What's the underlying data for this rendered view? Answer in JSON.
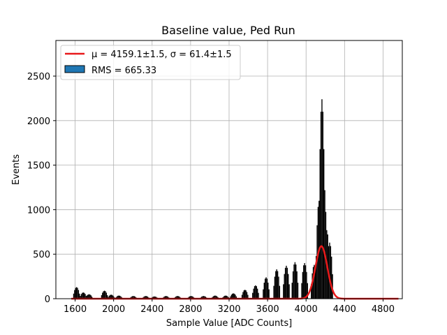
{
  "chart_data": {
    "type": "bar",
    "title": "Baseline value, Ped Run",
    "xlabel": "Sample Value [ADC Counts]",
    "ylabel": "Events",
    "xlim": [
      1400,
      5000
    ],
    "ylim": [
      0,
      2900
    ],
    "xticks": [
      1600,
      2000,
      2400,
      2800,
      3200,
      3600,
      4000,
      4400,
      4800
    ],
    "yticks": [
      0,
      500,
      1000,
      1500,
      2000,
      2500
    ],
    "grid": true,
    "legend_position": "top-left",
    "legend": [
      {
        "label": "μ = 4159.1±1.5, σ = 61.4±1.5",
        "kind": "line",
        "color": "#e8191a"
      },
      {
        "label": "RMS = 665.33",
        "kind": "patch",
        "color": "#1f77b4"
      }
    ],
    "histogram": {
      "name": "RMS = 665.33",
      "bin_width": 10,
      "clusters": [
        {
          "center": 1610,
          "peak": 130
        },
        {
          "center": 1680,
          "peak": 70
        },
        {
          "center": 1740,
          "peak": 50
        },
        {
          "center": 1900,
          "peak": 90
        },
        {
          "center": 1970,
          "peak": 45
        },
        {
          "center": 2050,
          "peak": 35
        },
        {
          "center": 2200,
          "peak": 30
        },
        {
          "center": 2330,
          "peak": 30
        },
        {
          "center": 2420,
          "peak": 25
        },
        {
          "center": 2540,
          "peak": 30
        },
        {
          "center": 2660,
          "peak": 30
        },
        {
          "center": 2800,
          "peak": 30
        },
        {
          "center": 2930,
          "peak": 30
        },
        {
          "center": 3050,
          "peak": 35
        },
        {
          "center": 3160,
          "peak": 35
        },
        {
          "center": 3240,
          "peak": 60
        },
        {
          "center": 3360,
          "peak": 100
        },
        {
          "center": 3470,
          "peak": 150
        },
        {
          "center": 3580,
          "peak": 240
        },
        {
          "center": 3690,
          "peak": 330
        },
        {
          "center": 3790,
          "peak": 370
        },
        {
          "center": 3880,
          "peak": 410
        },
        {
          "center": 3980,
          "peak": 400
        },
        {
          "center": 4080,
          "peak": 380
        },
        {
          "center": 4130,
          "peak": 1100
        },
        {
          "center": 4160,
          "peak": 2240
        },
        {
          "center": 4180,
          "peak": 1300
        },
        {
          "center": 4210,
          "peak": 770
        },
        {
          "center": 4240,
          "peak": 630
        }
      ]
    },
    "fit": {
      "name": "μ = 4159.1±1.5, σ = 61.4±1.5",
      "mu": 4159.1,
      "sigma": 61.4,
      "amplitude": 590,
      "x_range": [
        1560,
        4960
      ]
    }
  }
}
